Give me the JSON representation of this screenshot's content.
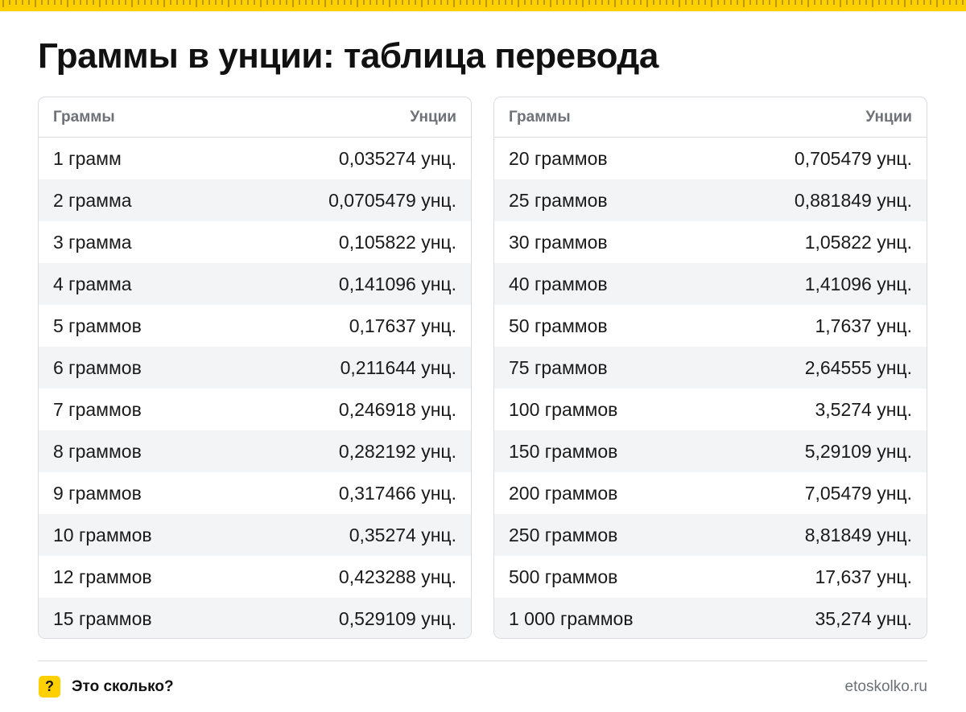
{
  "title": "Граммы в унции: таблица перевода",
  "colors": {
    "accent": "#ffd000",
    "border": "#d9dbe0",
    "stripe": "#f3f4f6",
    "muted": "#6e7178"
  },
  "tables": [
    {
      "header": {
        "grams": "Граммы",
        "ounces": "Унции"
      },
      "rows": [
        {
          "grams": "1 грамм",
          "ounces": "0,035274 унц."
        },
        {
          "grams": "2 грамма",
          "ounces": "0,0705479 унц."
        },
        {
          "grams": "3 грамма",
          "ounces": "0,105822 унц."
        },
        {
          "grams": "4 грамма",
          "ounces": "0,141096 унц."
        },
        {
          "grams": "5 граммов",
          "ounces": "0,17637 унц."
        },
        {
          "grams": "6 граммов",
          "ounces": "0,211644 унц."
        },
        {
          "grams": "7 граммов",
          "ounces": "0,246918 унц."
        },
        {
          "grams": "8 граммов",
          "ounces": "0,282192 унц."
        },
        {
          "grams": "9 граммов",
          "ounces": "0,317466 унц."
        },
        {
          "grams": "10 граммов",
          "ounces": "0,35274 унц."
        },
        {
          "grams": "12 граммов",
          "ounces": "0,423288 унц."
        },
        {
          "grams": "15 граммов",
          "ounces": "0,529109 унц."
        }
      ]
    },
    {
      "header": {
        "grams": "Граммы",
        "ounces": "Унции"
      },
      "rows": [
        {
          "grams": "20 граммов",
          "ounces": "0,705479 унц."
        },
        {
          "grams": "25 граммов",
          "ounces": "0,881849 унц."
        },
        {
          "grams": "30 граммов",
          "ounces": "1,05822 унц."
        },
        {
          "grams": "40 граммов",
          "ounces": "1,41096 унц."
        },
        {
          "grams": "50 граммов",
          "ounces": "1,7637 унц."
        },
        {
          "grams": "75 граммов",
          "ounces": "2,64555 унц."
        },
        {
          "grams": "100 граммов",
          "ounces": "3,5274 унц."
        },
        {
          "grams": "150 граммов",
          "ounces": "5,29109 унц."
        },
        {
          "grams": "200 граммов",
          "ounces": "7,05479 унц."
        },
        {
          "grams": "250 граммов",
          "ounces": "8,81849 унц."
        },
        {
          "grams": "500 граммов",
          "ounces": "17,637 унц."
        },
        {
          "grams": "1 000 граммов",
          "ounces": "35,274 унц."
        }
      ]
    }
  ],
  "footer": {
    "logo_icon": "question-mark-icon",
    "logo_glyph": "?",
    "brand": "Это сколько?",
    "site": "etoskolko.ru"
  }
}
